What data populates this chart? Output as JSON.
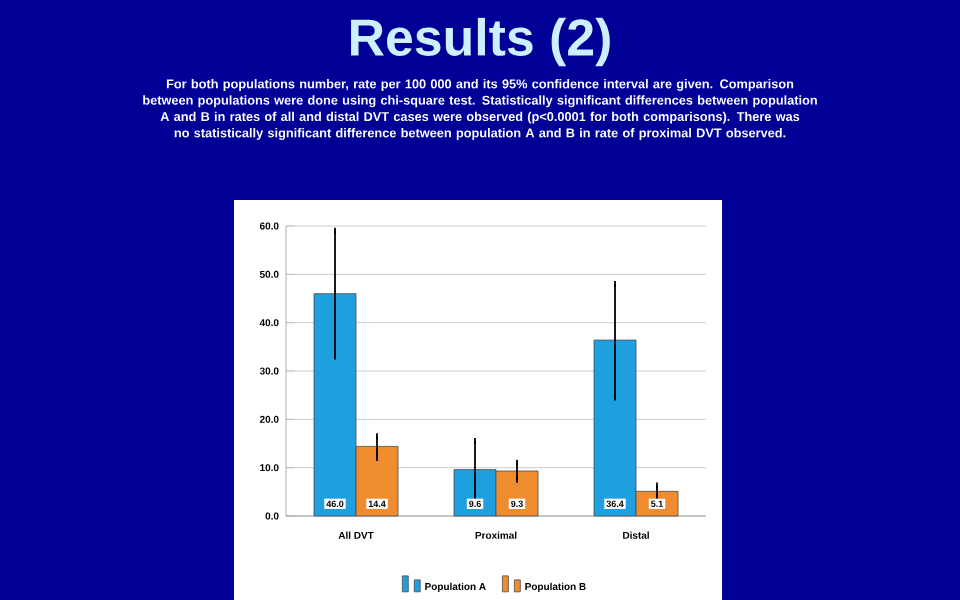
{
  "chart_data": {
    "type": "bar",
    "title": "Results (2)",
    "subtitle": "For both populations number, rate per 100 000 and its 95% confidence interval are given. Comparison between populations were done using chi-square test. Statistically significant differences between population A and B in rates of all and distal  DVT cases were observed (p<0.0001 for both comparisons).  There was no statistically significant difference between population A and B in rate of proximal DVT observed.",
    "categories": [
      "All DVT",
      "Proximal",
      "Distal"
    ],
    "series": [
      {
        "name": "Population A",
        "color": "#1ea0e0",
        "values": [
          46.0,
          9.6,
          36.4
        ],
        "value_labels": [
          "46.0",
          "9.6",
          "36.4"
        ],
        "errors": [
          [
            33,
            59
          ],
          [
            4,
            15.5
          ],
          [
            24.5,
            48
          ]
        ]
      },
      {
        "name": "Population B",
        "color": "#f08c30",
        "values": [
          14.4,
          9.3,
          5.1
        ],
        "value_labels": [
          "14.4",
          "9.3",
          "5.1"
        ],
        "errors": [
          [
            12,
            16.5
          ],
          [
            7.5,
            11
          ],
          [
            4,
            6.3
          ]
        ]
      }
    ],
    "ylim": [
      0,
      60
    ],
    "yticks": [
      {
        "value": 0,
        "label": "0.0"
      },
      {
        "value": 10,
        "label": "10.0"
      },
      {
        "value": 20,
        "label": "20.0"
      },
      {
        "value": 30,
        "label": "30.0"
      },
      {
        "value": 40,
        "label": "40.0"
      },
      {
        "value": 50,
        "label": "50.0"
      },
      {
        "value": 60,
        "label": "60.0"
      }
    ],
    "grid": "y",
    "legend": "bottom"
  }
}
